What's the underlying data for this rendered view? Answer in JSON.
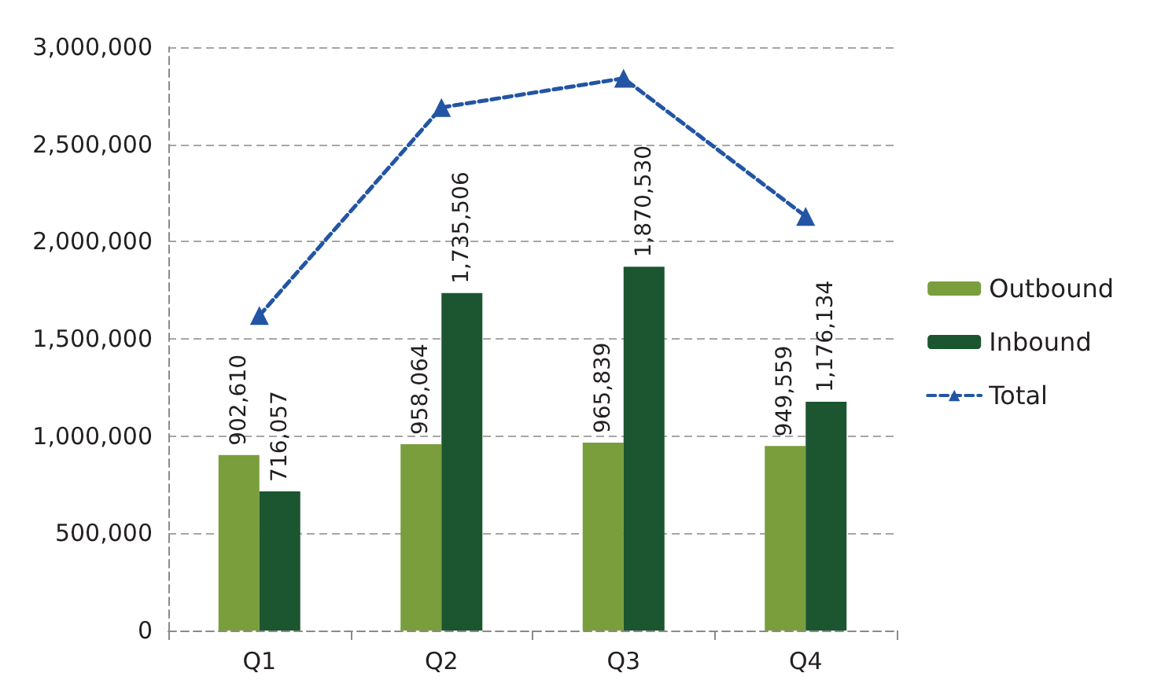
{
  "chart_data": {
    "type": "bar",
    "categories": [
      "Q1",
      "Q2",
      "Q3",
      "Q4"
    ],
    "series": [
      {
        "name": "Outbound",
        "color": "#7a9e3c",
        "values": [
          902610,
          958064,
          965839,
          949559
        ],
        "value_labels": [
          "902,610",
          "958,064",
          "965,839",
          "949,559"
        ]
      },
      {
        "name": "Inbound",
        "color": "#1b5631",
        "values": [
          716057,
          1735506,
          1870530,
          1176134
        ],
        "value_labels": [
          "716,057",
          "1,735,506",
          "1,870,530",
          "1,176,134"
        ]
      },
      {
        "name": "Total",
        "type": "line",
        "color": "#2255a4",
        "values": [
          1620000,
          2690000,
          2840000,
          2130000
        ],
        "marker": "triangle",
        "line_style": "dashed"
      }
    ],
    "ylim": [
      0,
      3000000
    ],
    "yticks": [
      {
        "value": 0,
        "label": "0"
      },
      {
        "value": 500000,
        "label": "500,000"
      },
      {
        "value": 1000000,
        "label": "1,000,000"
      },
      {
        "value": 1500000,
        "label": "1,500,000"
      },
      {
        "value": 2000000,
        "label": "2,000,000"
      },
      {
        "value": 2500000,
        "label": "2,500,000"
      },
      {
        "value": 3000000,
        "label": "3,000,000"
      }
    ],
    "grid": "y",
    "legend": "right"
  }
}
